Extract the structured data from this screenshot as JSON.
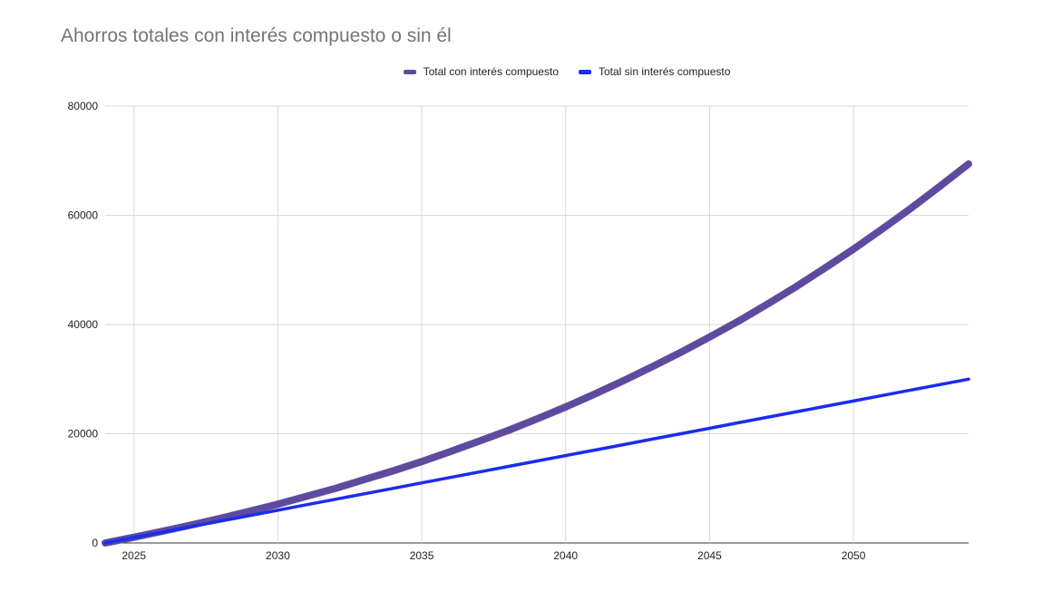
{
  "chart_data": {
    "type": "line",
    "title": "Ahorros totales con interés compuesto o sin él",
    "xlabel": "",
    "ylabel": "",
    "xlim": [
      2024,
      2054
    ],
    "ylim": [
      0,
      80000
    ],
    "x_ticks": [
      2025,
      2030,
      2035,
      2040,
      2045,
      2050
    ],
    "y_ticks": [
      0,
      20000,
      40000,
      60000,
      80000
    ],
    "grid": true,
    "legend_position": "top",
    "x": [
      2024,
      2025,
      2026,
      2027,
      2028,
      2029,
      2030,
      2031,
      2032,
      2033,
      2034,
      2035,
      2036,
      2037,
      2038,
      2039,
      2040,
      2041,
      2042,
      2043,
      2044,
      2045,
      2046,
      2047,
      2048,
      2049,
      2050,
      2051,
      2052,
      2053,
      2054
    ],
    "series": [
      {
        "name": "Total con interés compuesto",
        "color": "#5e4a9e",
        "values": [
          0,
          1050,
          2150,
          3300,
          4500,
          5800,
          7100,
          8550,
          10000,
          11600,
          13200,
          14900,
          16750,
          18650,
          20600,
          22700,
          24900,
          27250,
          29700,
          32250,
          34900,
          37700,
          40600,
          43700,
          46900,
          50300,
          53800,
          57500,
          61300,
          65300,
          69400
        ]
      },
      {
        "name": "Total sin interés compuesto",
        "color": "#1a2cf0",
        "values": [
          0,
          1000,
          2000,
          3000,
          4000,
          5000,
          6000,
          7000,
          8000,
          9000,
          10000,
          11000,
          12000,
          13000,
          14000,
          15000,
          16000,
          17000,
          18000,
          19000,
          20000,
          21000,
          22000,
          23000,
          24000,
          25000,
          26000,
          27000,
          28000,
          29000,
          30000
        ]
      }
    ]
  }
}
